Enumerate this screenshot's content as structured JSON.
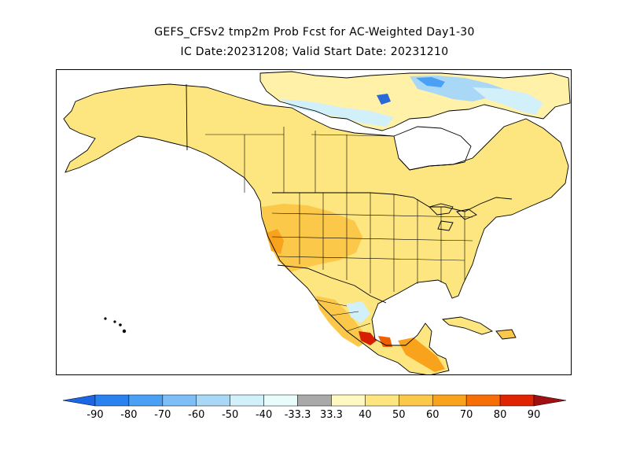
{
  "title": "GEFS_CFSv2 tmp2m Prob Fcst for AC-Weighted Day1-30",
  "subtitle": "IC Date:20231208; Valid Start Date: 20231210",
  "colorbar": {
    "labels": [
      "-90",
      "-80",
      "-70",
      "-60",
      "-50",
      "-40",
      "-33.3",
      "33.3",
      "40",
      "50",
      "60",
      "70",
      "80",
      "90"
    ],
    "colors": [
      "#1a66e6",
      "#2a82f0",
      "#4aa0f5",
      "#7dbef7",
      "#a9d8f7",
      "#d2f0fa",
      "#e8fcfc",
      "#a9a9a9",
      "#fff8c0",
      "#fde680",
      "#fbc84a",
      "#f9a21c",
      "#f76e06",
      "#e02402",
      "#a01010"
    ]
  },
  "map": {
    "colors": {
      "light": "#fff2a8",
      "p40": "#fde680",
      "p50": "#fbc84a",
      "p60": "#f9a21c",
      "p70": "#f06000",
      "p80": "#d81e00",
      "p90": "#a01010",
      "n40": "#d2f0fa",
      "n50": "#a9d8f7",
      "n60": "#7dbef7",
      "n70": "#4aa0f5",
      "n80": "#2a6ad8"
    }
  }
}
